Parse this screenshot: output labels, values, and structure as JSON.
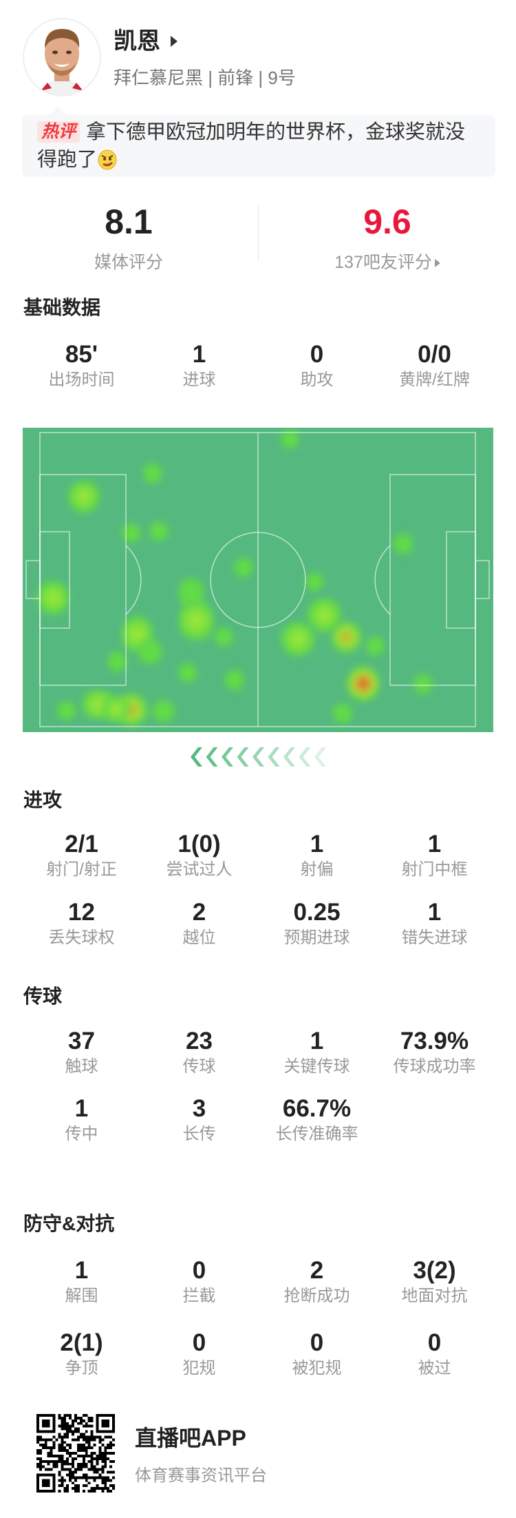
{
  "player": {
    "name": "凯恩",
    "subline": "拜仁慕尼黑 | 前锋 | 9号",
    "avatar_icon": "player-photo"
  },
  "comment": {
    "badge": "热评",
    "text": "拿下德甲欧冠加明年的世界杯，金球奖就没得跑了",
    "emoji_icon": "smug-face-emoji"
  },
  "ratings": {
    "media": {
      "value": "8.1",
      "label": "媒体评分"
    },
    "fans": {
      "value": "9.6",
      "label": "137吧友评分",
      "color": "#e8183c"
    }
  },
  "sections": [
    {
      "title": "基础数据",
      "stats": [
        {
          "value": "85'",
          "label": "出场时间"
        },
        {
          "value": "1",
          "label": "进球"
        },
        {
          "value": "0",
          "label": "助攻"
        },
        {
          "value": "0/0",
          "label": "黄牌/红牌"
        }
      ]
    },
    {
      "title": "进攻",
      "stats": [
        {
          "value": "2/1",
          "label": "射门/射正"
        },
        {
          "value": "1(0)",
          "label": "尝试过人"
        },
        {
          "value": "1",
          "label": "射偏"
        },
        {
          "value": "1",
          "label": "射门中框"
        },
        {
          "value": "12",
          "label": "丢失球权"
        },
        {
          "value": "2",
          "label": "越位"
        },
        {
          "value": "0.25",
          "label": "预期进球"
        },
        {
          "value": "1",
          "label": "错失进球"
        }
      ]
    },
    {
      "title": "传球",
      "stats": [
        {
          "value": "37",
          "label": "触球"
        },
        {
          "value": "23",
          "label": "传球"
        },
        {
          "value": "1",
          "label": "关键传球"
        },
        {
          "value": "73.9%",
          "label": "传球成功率"
        },
        {
          "value": "1",
          "label": "传中"
        },
        {
          "value": "3",
          "label": "长传"
        },
        {
          "value": "66.7%",
          "label": "长传准确率"
        }
      ]
    },
    {
      "title": "防守&对抗",
      "stats": [
        {
          "value": "1",
          "label": "解围"
        },
        {
          "value": "0",
          "label": "拦截"
        },
        {
          "value": "2",
          "label": "抢断成功"
        },
        {
          "value": "3(2)",
          "label": "地面对抗"
        },
        {
          "value": "2(1)",
          "label": "争顶"
        },
        {
          "value": "0",
          "label": "犯规"
        },
        {
          "value": "0",
          "label": "被犯规"
        },
        {
          "value": "0",
          "label": "被过"
        }
      ]
    }
  ],
  "heatmap": {
    "pitch_color": "#55b97f",
    "direction": "attacking-left",
    "direction_icon": "chevron-left-icon"
  },
  "footer": {
    "app_name": "直播吧APP",
    "tagline": "体育赛事资讯平台",
    "qr_icon": "qr-code"
  }
}
